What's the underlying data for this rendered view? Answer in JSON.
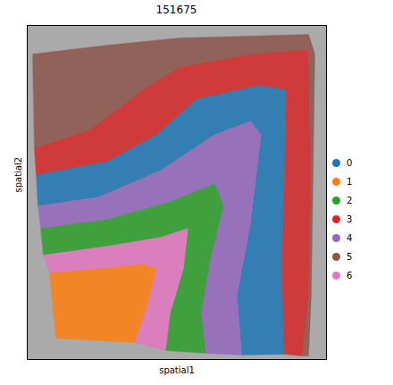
{
  "chart_data": {
    "type": "spatial",
    "title": "151675",
    "xlabel": "spatial1",
    "ylabel": "spatial2",
    "xlim": [
      30,
      365
    ],
    "ylim": [
      402,
      28
    ],
    "tick_labels": false,
    "legend": "right",
    "series": [
      {
        "name": "0",
        "color": "#1f77b4",
        "polygon": [
          [
            40,
            195
          ],
          [
            120,
            180
          ],
          [
            175,
            150
          ],
          [
            220,
            110
          ],
          [
            290,
            95
          ],
          [
            320,
            100
          ],
          [
            318,
            200
          ],
          [
            315,
            300
          ],
          [
            318,
            396
          ],
          [
            270,
            397
          ],
          [
            265,
            330
          ],
          [
            280,
            250
          ],
          [
            292,
            150
          ],
          [
            280,
            135
          ],
          [
            240,
            150
          ],
          [
            180,
            190
          ],
          [
            110,
            220
          ],
          [
            42,
            230
          ]
        ]
      },
      {
        "name": "1",
        "color": "#ff7f0e",
        "polygon": [
          [
            55,
            305
          ],
          [
            110,
            300
          ],
          [
            160,
            295
          ],
          [
            175,
            300
          ],
          [
            165,
            340
          ],
          [
            155,
            370
          ],
          [
            150,
            383
          ],
          [
            62,
            378
          ]
        ]
      },
      {
        "name": "2",
        "color": "#2ca02c",
        "polygon": [
          [
            45,
            255
          ],
          [
            120,
            245
          ],
          [
            190,
            225
          ],
          [
            240,
            205
          ],
          [
            250,
            230
          ],
          [
            235,
            290
          ],
          [
            225,
            350
          ],
          [
            230,
            395
          ],
          [
            185,
            392
          ],
          [
            190,
            350
          ],
          [
            205,
            300
          ],
          [
            210,
            255
          ],
          [
            180,
            265
          ],
          [
            120,
            275
          ],
          [
            48,
            285
          ]
        ]
      },
      {
        "name": "3",
        "color": "#d62728",
        "polygon": [
          [
            38,
            165
          ],
          [
            100,
            145
          ],
          [
            160,
            100
          ],
          [
            200,
            75
          ],
          [
            280,
            60
          ],
          [
            345,
            55
          ],
          [
            347,
            200
          ],
          [
            345,
            330
          ],
          [
            338,
            398
          ],
          [
            318,
            396
          ],
          [
            315,
            300
          ],
          [
            318,
            200
          ],
          [
            320,
            100
          ],
          [
            290,
            95
          ],
          [
            220,
            110
          ],
          [
            175,
            150
          ],
          [
            120,
            180
          ],
          [
            40,
            195
          ]
        ]
      },
      {
        "name": "4",
        "color": "#9467bd",
        "polygon": [
          [
            42,
            230
          ],
          [
            110,
            220
          ],
          [
            180,
            190
          ],
          [
            240,
            150
          ],
          [
            280,
            135
          ],
          [
            292,
            150
          ],
          [
            280,
            250
          ],
          [
            265,
            330
          ],
          [
            270,
            397
          ],
          [
            230,
            395
          ],
          [
            225,
            350
          ],
          [
            235,
            290
          ],
          [
            250,
            230
          ],
          [
            240,
            205
          ],
          [
            190,
            225
          ],
          [
            120,
            245
          ],
          [
            45,
            255
          ]
        ]
      },
      {
        "name": "5",
        "color": "#8c564b",
        "polygon": [
          [
            36,
            60
          ],
          [
            120,
            50
          ],
          [
            200,
            42
          ],
          [
            345,
            38
          ],
          [
            352,
            60
          ],
          [
            350,
            200
          ],
          [
            348,
            330
          ],
          [
            345,
            398
          ],
          [
            338,
            398
          ],
          [
            345,
            330
          ],
          [
            347,
            200
          ],
          [
            345,
            55
          ],
          [
            280,
            60
          ],
          [
            200,
            75
          ],
          [
            160,
            100
          ],
          [
            100,
            145
          ],
          [
            38,
            165
          ]
        ]
      },
      {
        "name": "6",
        "color": "#e377c2",
        "polygon": [
          [
            48,
            285
          ],
          [
            120,
            275
          ],
          [
            180,
            265
          ],
          [
            210,
            255
          ],
          [
            205,
            300
          ],
          [
            190,
            350
          ],
          [
            185,
            392
          ],
          [
            150,
            383
          ],
          [
            155,
            370
          ],
          [
            165,
            340
          ],
          [
            175,
            300
          ],
          [
            160,
            295
          ],
          [
            110,
            300
          ],
          [
            55,
            305
          ]
        ]
      }
    ]
  }
}
